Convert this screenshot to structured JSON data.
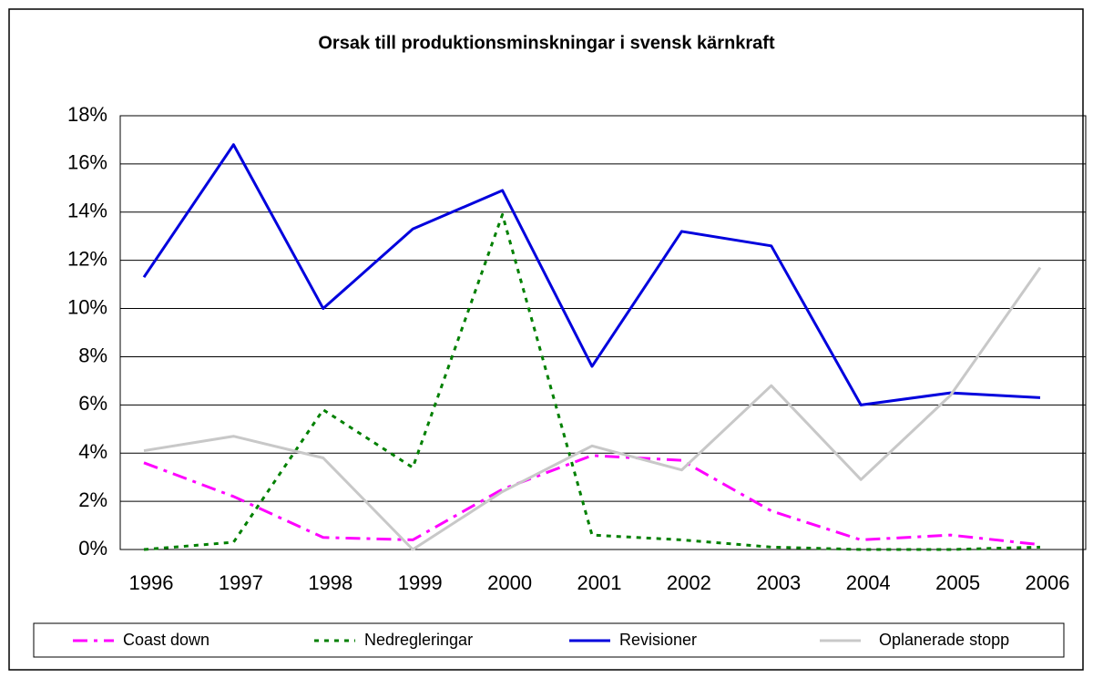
{
  "chart_data": {
    "type": "line",
    "title": "Orsak till produktionsminskningar i svensk kärnkraft",
    "categories": [
      "1996",
      "1997",
      "1998",
      "1999",
      "2000",
      "2001",
      "2002",
      "2003",
      "2004",
      "2005",
      "2006"
    ],
    "ylim": [
      0,
      18
    ],
    "yticks": [
      {
        "value": 0,
        "label": "0%"
      },
      {
        "value": 2,
        "label": "2%"
      },
      {
        "value": 4,
        "label": "4%"
      },
      {
        "value": 6,
        "label": "6%"
      },
      {
        "value": 8,
        "label": "8%"
      },
      {
        "value": 10,
        "label": "10%"
      },
      {
        "value": 12,
        "label": "12%"
      },
      {
        "value": 14,
        "label": "14%"
      },
      {
        "value": 16,
        "label": "16%"
      },
      {
        "value": 18,
        "label": "18%"
      }
    ],
    "grid": true,
    "legend": "bottom",
    "series": [
      {
        "name": "Coast down",
        "color": "#ff00ff",
        "dash": "dashdot",
        "values": [
          3.6,
          2.2,
          0.5,
          0.4,
          2.5,
          3.9,
          3.7,
          1.6,
          0.4,
          0.6,
          0.2
        ]
      },
      {
        "name": "Nedregleringar",
        "color": "#008000",
        "dash": "dotted",
        "values": [
          0,
          0.3,
          5.8,
          3.4,
          13.9,
          0.6,
          0.4,
          0.1,
          0,
          0,
          0.1
        ]
      },
      {
        "name": "Revisioner",
        "color": "#0000dd",
        "dash": "solid",
        "values": [
          11.3,
          16.8,
          10.0,
          13.3,
          14.9,
          7.6,
          13.2,
          12.6,
          6.0,
          6.5,
          6.3
        ]
      },
      {
        "name": "Oplanerade stopp",
        "color": "#c8c8c8",
        "dash": "solid",
        "values": [
          4.1,
          4.7,
          3.8,
          0,
          2.4,
          4.3,
          3.3,
          6.8,
          2.9,
          6.4,
          11.7
        ]
      }
    ]
  }
}
